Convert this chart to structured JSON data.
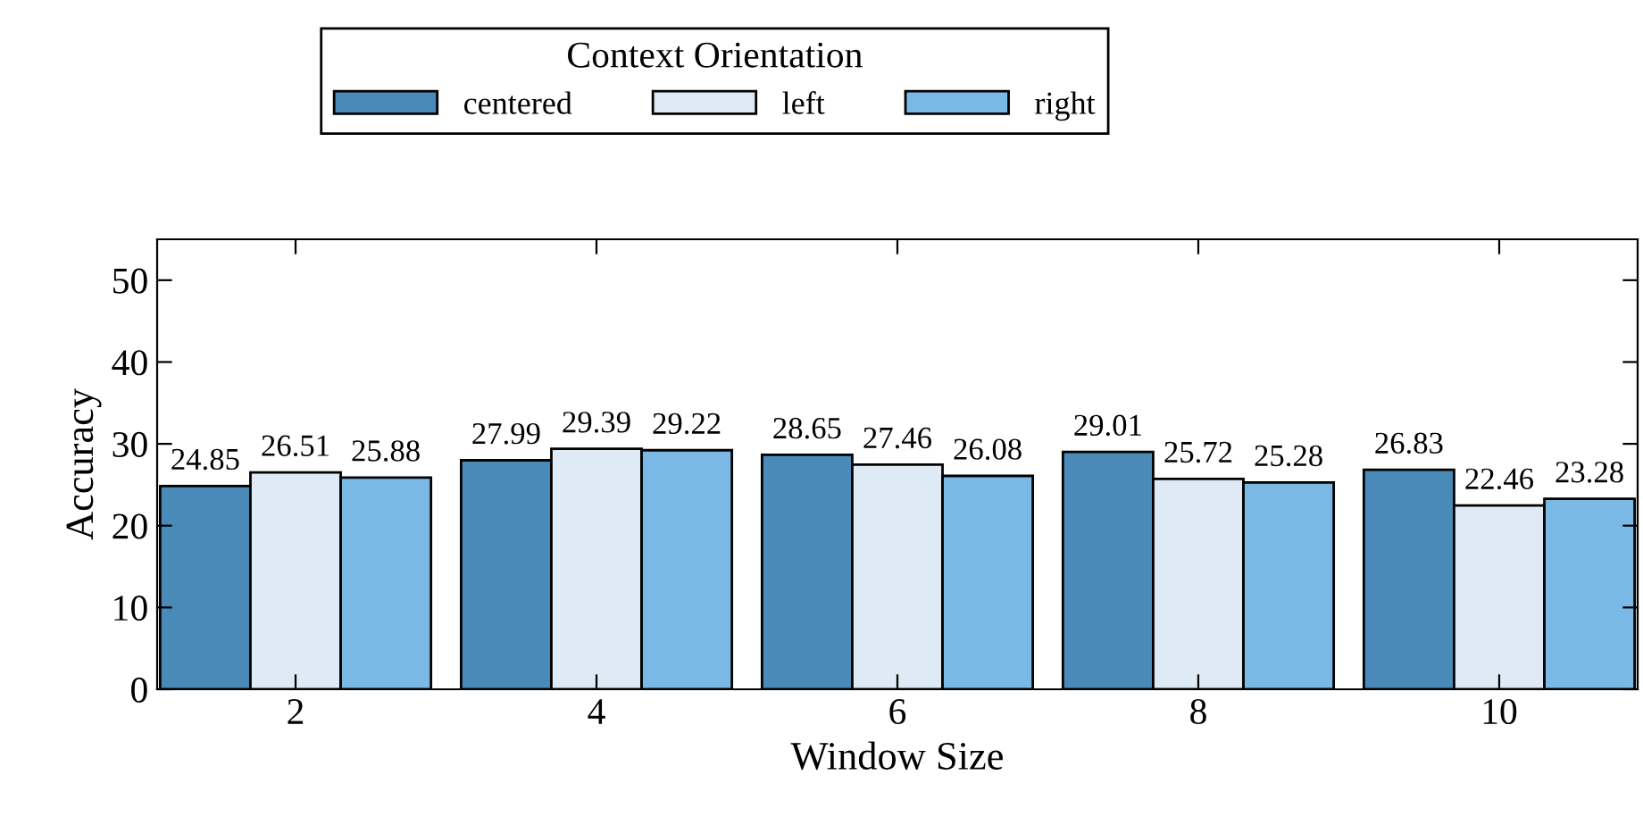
{
  "chart_data": {
    "type": "bar",
    "xlabel": "Window Size",
    "ylabel": "Accuracy",
    "legend_title": "Context Orientation",
    "categories": [
      "2",
      "4",
      "6",
      "8",
      "10"
    ],
    "series": [
      {
        "name": "centered",
        "color": "#4a8ab8",
        "values": [
          24.85,
          27.99,
          28.65,
          29.01,
          26.83
        ]
      },
      {
        "name": "left",
        "color": "#deebf7",
        "values": [
          26.51,
          29.39,
          27.46,
          25.72,
          22.46
        ]
      },
      {
        "name": "right",
        "color": "#7ab8e6",
        "values": [
          25.88,
          29.22,
          26.08,
          25.28,
          23.28
        ]
      }
    ],
    "ylim": [
      0,
      55
    ],
    "yticks": [
      0,
      10,
      20,
      30,
      40,
      50
    ],
    "data_labels": true,
    "legend": "top",
    "grid": false
  }
}
